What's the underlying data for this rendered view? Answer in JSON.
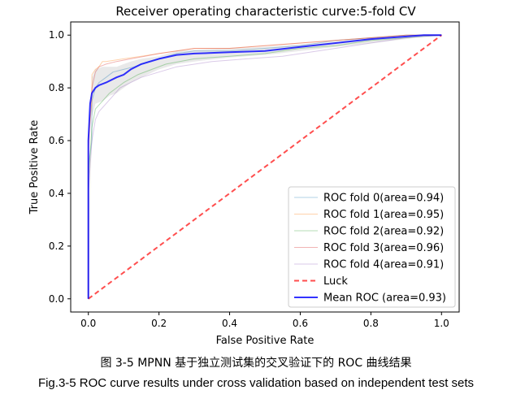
{
  "chart_data": {
    "type": "line",
    "title": "Receiver operating characteristic curve:5-fold CV",
    "xlabel": "False Positive Rate",
    "ylabel": "True Positive Rate",
    "xlim": [
      -0.05,
      1.05
    ],
    "ylim": [
      -0.05,
      1.05
    ],
    "xticks": [
      "0.0",
      "0.2",
      "0.4",
      "0.6",
      "0.8",
      "1.0"
    ],
    "yticks": [
      "0.0",
      "0.2",
      "0.4",
      "0.6",
      "0.8",
      "1.0"
    ],
    "grid": false,
    "legend_position": "lower-right",
    "std_band": {
      "color": "#9a9a9a",
      "x": [
        0,
        0.01,
        0.02,
        0.04,
        0.06,
        0.08,
        0.1,
        0.12,
        0.15,
        0.2,
        0.25,
        0.3,
        0.4,
        0.5,
        0.6,
        0.7,
        0.8,
        0.9,
        0.95,
        1.0
      ],
      "upper": [
        0,
        0.84,
        0.87,
        0.88,
        0.88,
        0.88,
        0.89,
        0.9,
        0.91,
        0.92,
        0.94,
        0.945,
        0.95,
        0.955,
        0.965,
        0.975,
        0.99,
        0.995,
        0.997,
        1.0
      ],
      "lower": [
        0,
        0.69,
        0.74,
        0.75,
        0.77,
        0.78,
        0.8,
        0.82,
        0.84,
        0.87,
        0.89,
        0.9,
        0.915,
        0.925,
        0.94,
        0.955,
        0.97,
        0.985,
        0.995,
        1.0
      ]
    },
    "series": [
      {
        "name": "ROC fold 0(area=0.94)",
        "color": "#1f77b4",
        "opacity": 0.35,
        "width": 1,
        "dash": "",
        "x": [
          0,
          0,
          0.01,
          0.01,
          0.02,
          0.03,
          0.05,
          0.07,
          0.1,
          0.13,
          0.17,
          0.2,
          0.25,
          0.3,
          0.4,
          0.5,
          0.6,
          0.7,
          0.8,
          0.9,
          0.95,
          1.0
        ],
        "y": [
          0,
          0.5,
          0.6,
          0.75,
          0.8,
          0.82,
          0.84,
          0.86,
          0.87,
          0.88,
          0.9,
          0.91,
          0.93,
          0.94,
          0.94,
          0.95,
          0.96,
          0.98,
          0.99,
          1.0,
          1.0,
          1.0
        ]
      },
      {
        "name": "ROC fold 1(area=0.95)",
        "color": "#ff7f0e",
        "opacity": 0.35,
        "width": 1,
        "dash": "",
        "x": [
          0,
          0,
          0.01,
          0.01,
          0.02,
          0.03,
          0.04,
          0.05,
          0.1,
          0.15,
          0.2,
          0.25,
          0.3,
          0.4,
          0.5,
          0.6,
          0.7,
          0.8,
          0.9,
          1.0
        ],
        "y": [
          0,
          0.6,
          0.75,
          0.85,
          0.87,
          0.88,
          0.9,
          0.9,
          0.91,
          0.92,
          0.93,
          0.94,
          0.95,
          0.95,
          0.96,
          0.97,
          0.98,
          0.99,
          1.0,
          1.0
        ]
      },
      {
        "name": "ROC fold 2(area=0.92)",
        "color": "#2ca02c",
        "opacity": 0.35,
        "width": 1,
        "dash": "",
        "x": [
          0,
          0,
          0.01,
          0.02,
          0.04,
          0.06,
          0.08,
          0.1,
          0.14,
          0.18,
          0.22,
          0.3,
          0.4,
          0.5,
          0.6,
          0.7,
          0.8,
          0.9,
          1.0
        ],
        "y": [
          0,
          0.45,
          0.65,
          0.72,
          0.75,
          0.78,
          0.8,
          0.82,
          0.85,
          0.87,
          0.89,
          0.91,
          0.92,
          0.93,
          0.95,
          0.96,
          0.98,
          0.99,
          1.0
        ]
      },
      {
        "name": "ROC fold 3(area=0.96)",
        "color": "#d62728",
        "opacity": 0.35,
        "width": 1,
        "dash": "",
        "x": [
          0,
          0,
          0.01,
          0.02,
          0.03,
          0.05,
          0.08,
          0.12,
          0.16,
          0.2,
          0.3,
          0.4,
          0.5,
          0.6,
          0.7,
          0.8,
          0.9,
          1.0
        ],
        "y": [
          0,
          0.55,
          0.8,
          0.86,
          0.88,
          0.89,
          0.9,
          0.91,
          0.92,
          0.93,
          0.95,
          0.95,
          0.96,
          0.97,
          0.98,
          0.99,
          1.0,
          1.0
        ]
      },
      {
        "name": "ROC fold 4(area=0.91)",
        "color": "#9467bd",
        "opacity": 0.35,
        "width": 1,
        "dash": "",
        "x": [
          0,
          0,
          0.01,
          0.02,
          0.03,
          0.05,
          0.07,
          0.09,
          0.12,
          0.15,
          0.2,
          0.25,
          0.35,
          0.45,
          0.55,
          0.65,
          0.75,
          0.85,
          0.9,
          1.0
        ],
        "y": [
          0,
          0.4,
          0.6,
          0.68,
          0.71,
          0.74,
          0.77,
          0.8,
          0.82,
          0.84,
          0.86,
          0.88,
          0.9,
          0.91,
          0.92,
          0.94,
          0.96,
          0.98,
          0.99,
          1.0
        ]
      },
      {
        "name": "Luck",
        "color": "#ff2222",
        "opacity": 0.8,
        "width": 2,
        "dash": "6,4",
        "x": [
          0,
          1
        ],
        "y": [
          0,
          1
        ]
      },
      {
        "name": "Mean ROC (area=0.93)",
        "color": "#0000ff",
        "opacity": 0.8,
        "width": 2,
        "dash": "",
        "x": [
          0,
          0,
          0.005,
          0.01,
          0.02,
          0.03,
          0.05,
          0.08,
          0.1,
          0.12,
          0.15,
          0.2,
          0.25,
          0.3,
          0.4,
          0.5,
          0.6,
          0.7,
          0.8,
          0.9,
          0.95,
          1.0
        ],
        "y": [
          0,
          0.6,
          0.74,
          0.78,
          0.8,
          0.81,
          0.82,
          0.84,
          0.85,
          0.87,
          0.89,
          0.91,
          0.925,
          0.93,
          0.935,
          0.94,
          0.955,
          0.97,
          0.985,
          0.995,
          1.0,
          1.0
        ]
      }
    ]
  },
  "caption": {
    "chinese": "图 3-5 MPNN 基于独立测试集的交叉验证下的 ROC 曲线结果",
    "english": "Fig.3-5 ROC curve results under cross validation based on independent test sets"
  }
}
